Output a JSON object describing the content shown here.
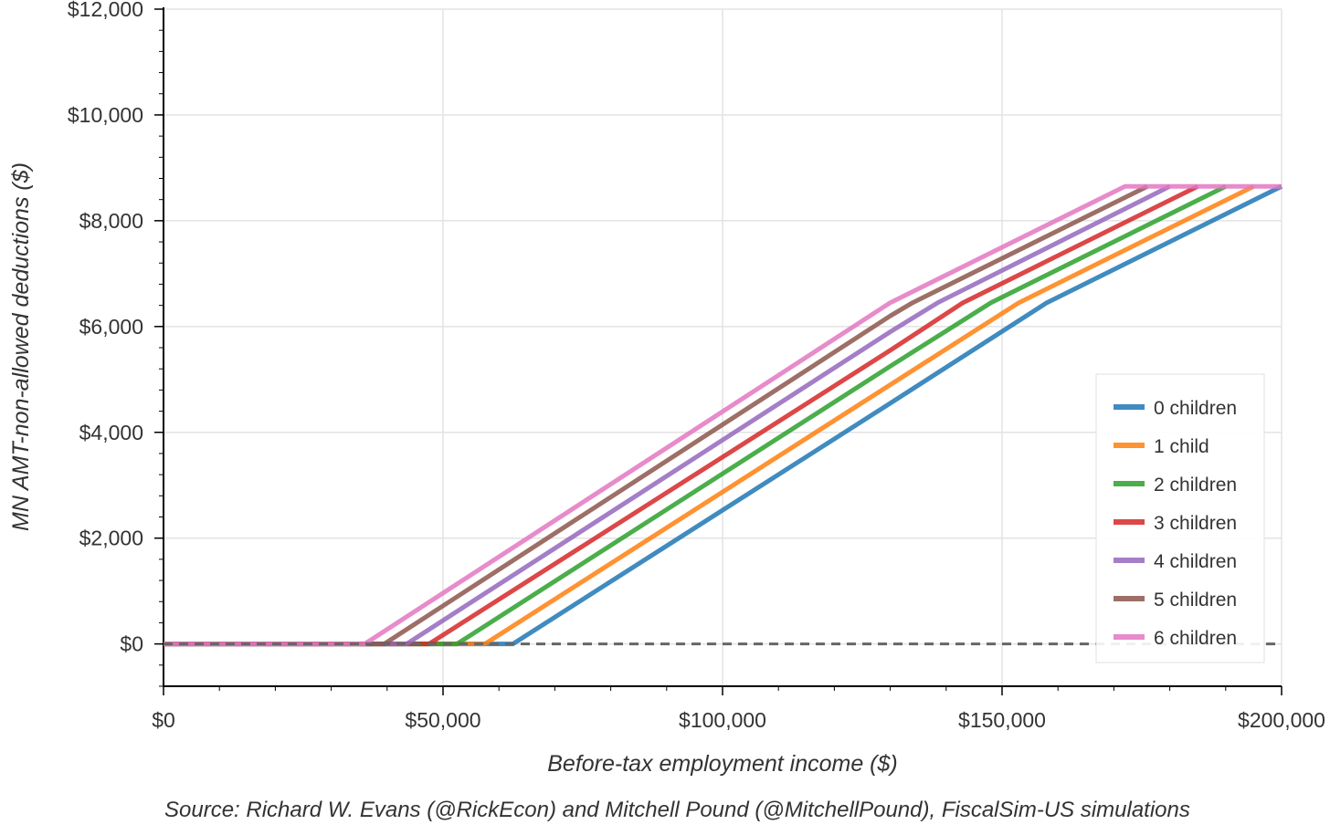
{
  "chart_data": {
    "type": "line",
    "title": "",
    "xlabel": "Before-tax employment income ($)",
    "ylabel": "MN AMT-non-allowed deductions ($)",
    "source": "Source: Richard W. Evans (@RickEcon) and Mitchell Pound (@MitchellPound), FiscalSim-US simulations",
    "xlim": [
      0,
      200000
    ],
    "ylim": [
      -800,
      12000
    ],
    "x_ticks": [
      {
        "value": 0,
        "label": "$0"
      },
      {
        "value": 50000,
        "label": "$50,000"
      },
      {
        "value": 100000,
        "label": "$100,000"
      },
      {
        "value": 150000,
        "label": "$150,000"
      },
      {
        "value": 200000,
        "label": "$200,000"
      }
    ],
    "y_ticks": [
      {
        "value": 0,
        "label": "$0"
      },
      {
        "value": 2000,
        "label": "$2,000"
      },
      {
        "value": 4000,
        "label": "$4,000"
      },
      {
        "value": 6000,
        "label": "$6,000"
      },
      {
        "value": 8000,
        "label": "$8,000"
      },
      {
        "value": 10000,
        "label": "$10,000"
      },
      {
        "value": 12000,
        "label": "$12,000"
      }
    ],
    "grid": true,
    "legend_position": "bottom-right",
    "reference_line": {
      "y": 0,
      "style": "dashed",
      "color": "#666666"
    },
    "series": [
      {
        "name": "0 children",
        "color": "#1f77b4",
        "x": [
          0,
          62500,
          130000,
          158000,
          200000
        ],
        "y": [
          0,
          0,
          4550,
          6450,
          8650
        ]
      },
      {
        "name": "1 child",
        "color": "#ff7f0e",
        "x": [
          0,
          57500,
          130000,
          153000,
          195000
        ],
        "y": [
          0,
          0,
          4900,
          6450,
          8650
        ]
      },
      {
        "name": "2 children",
        "color": "#2ca02c",
        "x": [
          0,
          52500,
          130000,
          148000,
          190000
        ],
        "y": [
          0,
          0,
          5250,
          6450,
          8650
        ]
      },
      {
        "name": "3 children",
        "color": "#d62728",
        "x": [
          0,
          47500,
          130000,
          143000,
          185000
        ],
        "y": [
          0,
          0,
          5550,
          6450,
          8650
        ]
      },
      {
        "name": "4 children",
        "color": "#9467bd",
        "x": [
          0,
          43500,
          130000,
          138500,
          180000
        ],
        "y": [
          0,
          0,
          5900,
          6450,
          8650
        ]
      },
      {
        "name": "5 children",
        "color": "#8c564b",
        "x": [
          0,
          39500,
          130000,
          134000,
          176000
        ],
        "y": [
          0,
          0,
          6200,
          6450,
          8650
        ]
      },
      {
        "name": "6 children",
        "color": "#e377c2",
        "x": [
          0,
          36000,
          130000,
          172000,
          200000
        ],
        "y": [
          0,
          0,
          6450,
          8650,
          8650
        ]
      }
    ]
  }
}
